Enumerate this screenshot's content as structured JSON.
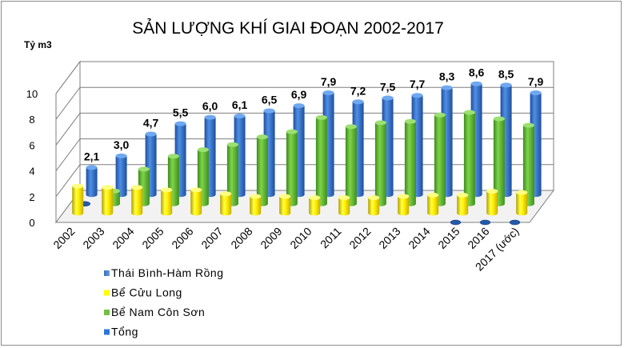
{
  "chart_data": {
    "type": "bar",
    "title": "SẢN LƯỢNG KHÍ GIAI ĐOẠN 2002-2017",
    "ylabel": "Tỷ m3",
    "xlabel": "",
    "ylim": [
      0,
      10
    ],
    "yticks": [
      "0",
      "2",
      "4",
      "6",
      "8",
      "10"
    ],
    "categories": [
      "2002",
      "2003",
      "2004",
      "2005",
      "2006",
      "2007",
      "2008",
      "2009",
      "2010",
      "2011",
      "2012",
      "2013",
      "2014",
      "2015",
      "2016",
      "2017 (ước)"
    ],
    "total_labels": [
      "2,1",
      "3,0",
      "4,7",
      "5,5",
      "6,0",
      "6,1",
      "6,5",
      "6,9",
      "7,9",
      "7,2",
      "7,5",
      "7,7",
      "8,3",
      "8,6",
      "8,5",
      "7,9"
    ],
    "series": [
      {
        "name": "Thái Bình-Hàm Rồng",
        "color": "#4f81bd",
        "values": [
          0,
          0,
          0,
          0,
          0,
          0,
          0,
          0,
          0,
          0,
          0,
          0,
          0,
          0.1,
          0.2,
          0.2
        ]
      },
      {
        "name": "Bể Cửu Long",
        "color": "#ffff00",
        "values": [
          2.1,
          2.0,
          2.0,
          1.8,
          1.8,
          1.5,
          1.3,
          1.3,
          1.2,
          1.2,
          1.2,
          1.3,
          1.4,
          1.4,
          1.7,
          1.6
        ]
      },
      {
        "name": "Bể Nam Côn Sơn",
        "color": "#5cb82e",
        "values": [
          0,
          1.0,
          2.7,
          3.7,
          4.2,
          4.6,
          5.2,
          5.6,
          6.7,
          6.0,
          6.3,
          6.4,
          6.9,
          7.1,
          6.6,
          6.1
        ]
      },
      {
        "name": "Tổng",
        "color": "#2e75d6",
        "values": [
          2.1,
          3.0,
          4.7,
          5.5,
          6.0,
          6.1,
          6.5,
          6.9,
          7.9,
          7.2,
          7.5,
          7.7,
          8.3,
          8.6,
          8.5,
          7.9
        ]
      }
    ],
    "legend": "bottom-left",
    "grid": true
  }
}
